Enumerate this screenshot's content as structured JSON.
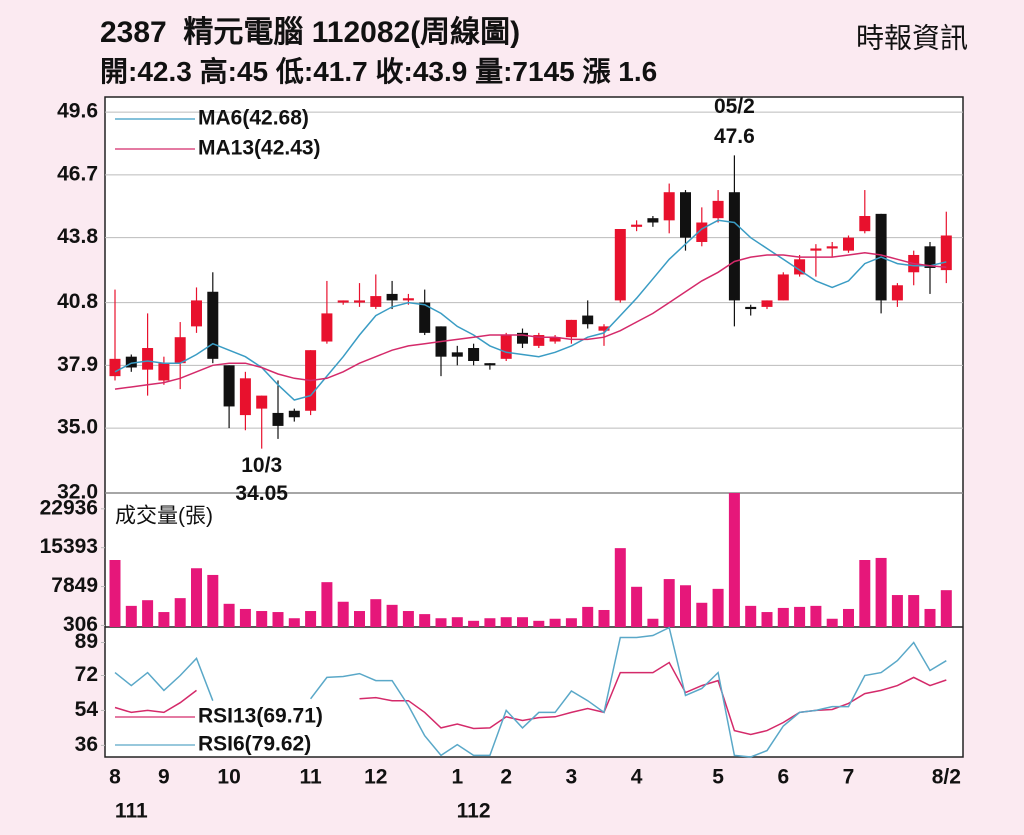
{
  "header": {
    "title": "2387  精元電腦 112082(周線圖)",
    "source": "時報資訊",
    "stats": [
      {
        "label": "開:",
        "value": 42.3
      },
      {
        "label": "高:",
        "value": 45
      },
      {
        "label": "低:",
        "value": 41.7
      },
      {
        "label": "收:",
        "value": 43.9
      },
      {
        "label": "量:",
        "value": 7145
      },
      {
        "label": "漲 ",
        "value": 1.6
      }
    ]
  },
  "x_axis": {
    "categories": [
      "8",
      null,
      null,
      "9",
      null,
      null,
      null,
      "10",
      null,
      null,
      null,
      null,
      "11",
      null,
      null,
      null,
      "12",
      null,
      null,
      null,
      null,
      "1",
      null,
      null,
      "2",
      null,
      null,
      null,
      "3",
      null,
      null,
      null,
      "4",
      null,
      null,
      null,
      null,
      "5",
      null,
      null,
      null,
      "6",
      null,
      null,
      null,
      "7",
      null,
      null,
      null,
      null,
      null,
      "8/2"
    ],
    "years": [
      null,
      "111",
      null,
      null,
      null,
      null,
      null,
      null,
      null,
      null,
      null,
      null,
      null,
      null,
      null,
      null,
      null,
      null,
      null,
      null,
      null,
      null,
      "112",
      null,
      null,
      null,
      null,
      null,
      null,
      null,
      null,
      null,
      null,
      null,
      null,
      null,
      null,
      null,
      null,
      null,
      null,
      null,
      null,
      null,
      null,
      null,
      null,
      null,
      null,
      null,
      null,
      null
    ]
  },
  "chart_data": [
    {
      "type": "candlestick",
      "ylim": [
        32,
        50.3
      ],
      "yticks": [
        49.6,
        46.7,
        43.8,
        40.8,
        37.9,
        {
          "value": 35,
          "label": "35.0"
        },
        {
          "value": 32,
          "label": "32.0"
        }
      ],
      "grid": true,
      "up_color": "#e8112d",
      "down_color": "#111111",
      "legend": "upper left",
      "open": [
        37.4,
        38.3,
        37.7,
        37.2,
        38.0,
        39.7,
        41.3,
        37.9,
        35.6,
        35.9,
        35.7,
        35.8,
        35.8,
        39.0,
        40.8,
        40.8,
        40.6,
        41.2,
        40.9,
        40.8,
        39.7,
        38.5,
        38.7,
        38.0,
        38.2,
        39.4,
        38.8,
        39.0,
        39.2,
        40.2,
        39.5,
        40.9,
        44.3,
        44.7,
        44.6,
        45.9,
        43.6,
        44.7,
        45.9,
        40.6,
        40.6,
        40.9,
        42.1,
        43.2,
        43.3,
        43.2,
        44.1,
        44.9,
        40.9,
        42.2,
        43.4,
        42.3
      ],
      "high": [
        41.4,
        38.4,
        40.3,
        38.3,
        39.9,
        41.5,
        42.2,
        37.9,
        37.6,
        36.5,
        37.2,
        35.9,
        38.6,
        41.8,
        40.9,
        41.7,
        42.1,
        41.8,
        41.2,
        41.4,
        39.7,
        38.8,
        38.9,
        38.0,
        39.4,
        39.6,
        39.4,
        39.3,
        40.0,
        40.9,
        39.8,
        44.2,
        44.6,
        44.8,
        46.3,
        46.0,
        45.2,
        46.0,
        47.6,
        40.7,
        40.9,
        42.2,
        43.0,
        43.5,
        43.6,
        43.9,
        46.0,
        44.9,
        41.7,
        43.2,
        43.6,
        45
      ],
      "low": [
        37.2,
        37.6,
        36.5,
        37.0,
        36.8,
        39.4,
        38.0,
        35.0,
        34.9,
        34.05,
        34.5,
        35.3,
        35.6,
        38.9,
        40.7,
        40.6,
        40.5,
        40.5,
        40.7,
        39.3,
        37.4,
        37.9,
        37.9,
        37.7,
        38.1,
        38.7,
        38.7,
        38.9,
        38.9,
        39.6,
        38.8,
        40.8,
        44.1,
        44.3,
        44.0,
        43.2,
        43.4,
        44.5,
        39.7,
        40.2,
        40.5,
        40.9,
        42.0,
        42.0,
        42.9,
        43.1,
        44.0,
        40.3,
        40.6,
        41.6,
        41.2,
        41.7
      ],
      "close": [
        38.2,
        37.8,
        38.7,
        38.0,
        39.2,
        40.9,
        38.2,
        36.0,
        37.3,
        36.5,
        35.1,
        35.5,
        38.6,
        40.3,
        40.9,
        40.9,
        41.1,
        40.9,
        41.0,
        39.4,
        38.3,
        38.3,
        38.1,
        37.9,
        39.3,
        38.9,
        39.3,
        39.2,
        40.0,
        39.8,
        39.7,
        44.2,
        44.4,
        44.5,
        45.9,
        43.8,
        44.5,
        45.5,
        40.9,
        40.5,
        40.9,
        42.1,
        42.8,
        43.3,
        43.4,
        43.8,
        44.8,
        40.9,
        41.6,
        43.0,
        42.4,
        43.9
      ],
      "series": [
        {
          "name": "MA6(42.68)",
          "color": "#3a9cc4",
          "values": [
            37.6,
            38.0,
            38.1,
            38.0,
            38.0,
            38.4,
            38.9,
            38.6,
            38.3,
            37.8,
            37.0,
            36.3,
            36.5,
            37.4,
            38.3,
            39.3,
            40.2,
            40.6,
            40.8,
            40.7,
            40.3,
            39.7,
            39.3,
            38.8,
            38.5,
            38.4,
            38.3,
            38.5,
            38.8,
            39.2,
            39.4,
            40.2,
            41.0,
            41.9,
            42.8,
            43.5,
            44.2,
            44.6,
            44.5,
            43.8,
            43.3,
            42.8,
            42.3,
            41.8,
            41.5,
            41.8,
            42.6,
            42.9,
            42.6,
            42.5,
            42.5,
            42.68
          ]
        },
        {
          "name": "MA13(42.43)",
          "color": "#d42a6a",
          "values": [
            36.8,
            36.9,
            37.0,
            37.1,
            37.3,
            37.6,
            37.9,
            38.0,
            38.0,
            37.8,
            37.5,
            37.3,
            37.2,
            37.3,
            37.6,
            38.0,
            38.3,
            38.6,
            38.8,
            38.9,
            39.0,
            39.1,
            39.2,
            39.3,
            39.3,
            39.3,
            39.2,
            39.2,
            39.1,
            39.1,
            39.2,
            39.5,
            39.9,
            40.3,
            40.8,
            41.3,
            41.8,
            42.2,
            42.7,
            42.9,
            43.0,
            43.0,
            42.9,
            42.9,
            42.9,
            43.0,
            43.1,
            43.0,
            42.8,
            42.6,
            42.5,
            42.43
          ]
        }
      ],
      "annotations": [
        {
          "label": "10/3",
          "value": 34.05
        },
        {
          "label": "05/2",
          "value": 47.6
        }
      ]
    },
    {
      "type": "bar",
      "title": "成交量(張)",
      "color": "#e6177a",
      "ylim": [
        0,
        26000
      ],
      "yticks": [
        22936,
        15393,
        7849,
        306
      ],
      "values": [
        13000,
        4100,
        5200,
        2900,
        5600,
        11400,
        10100,
        4500,
        3500,
        3100,
        2900,
        1700,
        3100,
        8700,
        4900,
        3100,
        5400,
        4300,
        3100,
        2500,
        1700,
        1900,
        1200,
        1700,
        1900,
        1900,
        1200,
        1600,
        1700,
        3900,
        3300,
        15300,
        7800,
        1600,
        9300,
        8100,
        4700,
        7400,
        26000,
        4100,
        2900,
        3700,
        3900,
        4100,
        1600,
        3500,
        13000,
        13400,
        6200,
        6200,
        3500,
        7145
      ]
    },
    {
      "type": "line",
      "ylim": [
        30,
        97
      ],
      "yticks": [
        89,
        72,
        54,
        36
      ],
      "legend": "lower left",
      "series": [
        {
          "name": "RSI13(69.71)",
          "color": "#d42a6a",
          "values": [
            55.5,
            53,
            54,
            53,
            58,
            64.3,
            null,
            null,
            null,
            null,
            null,
            null,
            null,
            null,
            null,
            60,
            60.6,
            59,
            59,
            53,
            45,
            47,
            44.7,
            45,
            50.7,
            48.8,
            50.3,
            50.7,
            53,
            55,
            53,
            73.5,
            73.5,
            73.5,
            78.7,
            63.2,
            66.8,
            69.4,
            43.6,
            41.6,
            43.6,
            47.8,
            53,
            54,
            54.5,
            57.6,
            62.7,
            64.3,
            66.8,
            71,
            66.8,
            69.71
          ]
        },
        {
          "name": "RSI6(79.62)",
          "color": "#5aa8c8",
          "values": [
            73.5,
            66.8,
            73.5,
            64.3,
            72,
            80.8,
            59,
            null,
            null,
            null,
            null,
            null,
            60,
            71,
            71.5,
            73,
            69.4,
            69.4,
            56.5,
            41,
            30.8,
            36.4,
            30.8,
            30.8,
            54,
            45,
            53,
            53,
            64,
            59,
            53,
            91.6,
            91.6,
            92.6,
            96.7,
            61.7,
            65.3,
            73.5,
            30.8,
            30,
            33.3,
            46,
            53,
            54,
            56,
            56,
            72,
            73.5,
            79.7,
            89,
            74.6,
            79.62
          ]
        }
      ]
    }
  ]
}
